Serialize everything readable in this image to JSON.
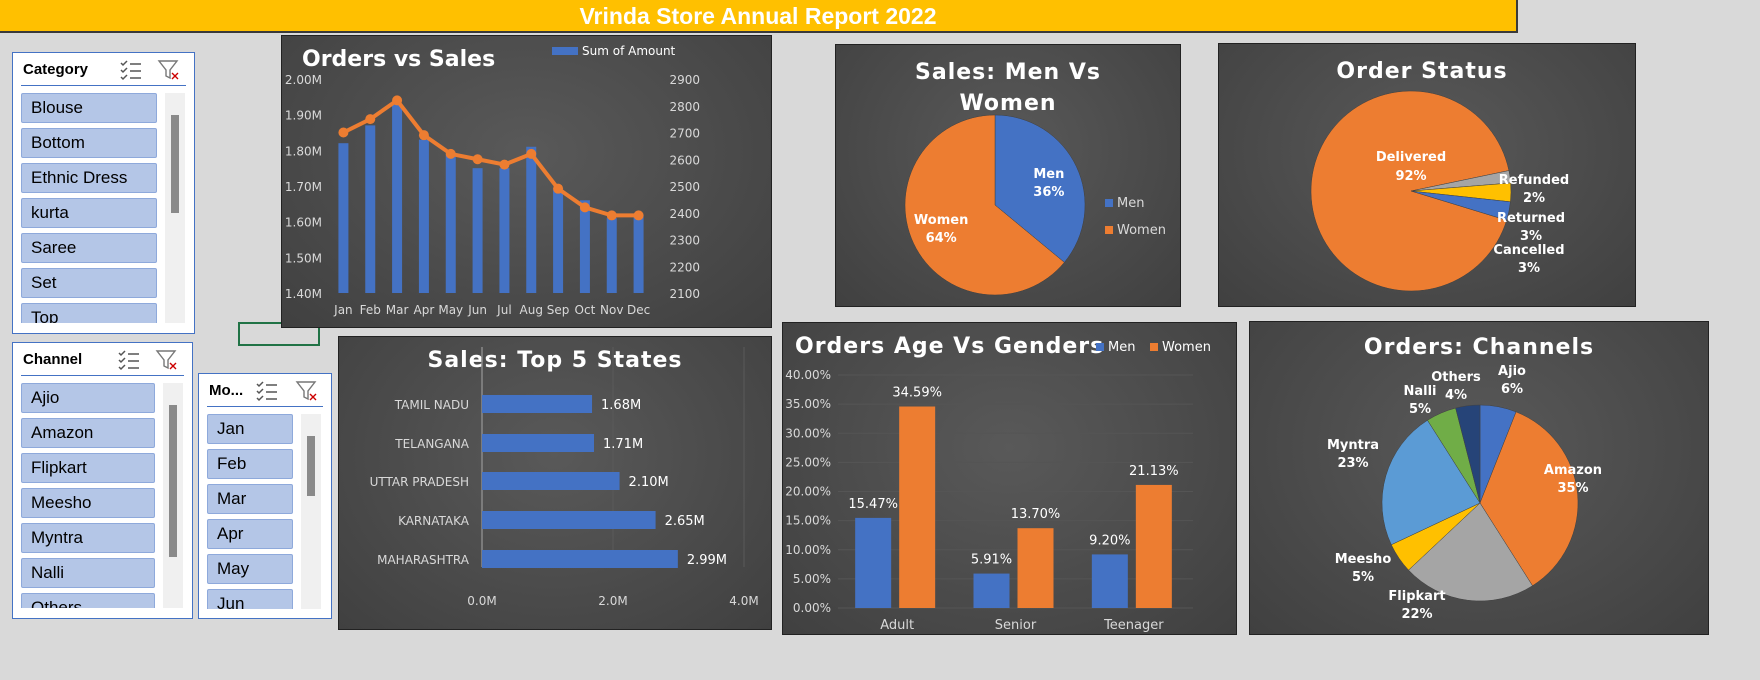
{
  "report_title": "Vrinda Store Annual Report 2022",
  "slicers": {
    "category": {
      "title": "Category",
      "items": [
        "Blouse",
        "Bottom",
        "Ethnic Dress",
        "kurta",
        "Saree",
        "Set",
        "Top"
      ]
    },
    "channel": {
      "title": "Channel",
      "items": [
        "Ajio",
        "Amazon",
        "Flipkart",
        "Meesho",
        "Myntra",
        "Nalli",
        "Others"
      ]
    },
    "month": {
      "title": "Mo...",
      "items": [
        "Jan",
        "Feb",
        "Mar",
        "Apr",
        "May",
        "Jun"
      ]
    }
  },
  "colors": {
    "blue": "#4472c4",
    "orange": "#ed7d31",
    "gray": "#a5a5a5",
    "yellow": "#ffc000",
    "lightblue": "#5b9bd5",
    "green": "#70ad47",
    "navy": "#264478"
  },
  "chart_data": [
    {
      "id": "orders_vs_sales",
      "type": "bar",
      "title": "Orders vs Sales",
      "legend": "Sum of Amount",
      "legend_position": "top",
      "categories": [
        "Jan",
        "Feb",
        "Mar",
        "Apr",
        "May",
        "Jun",
        "Jul",
        "Aug",
        "Sep",
        "Oct",
        "Nov",
        "Dec"
      ],
      "series": [
        {
          "name": "Sum of Amount",
          "type": "bar",
          "axis": "left",
          "values": [
            1.82,
            1.87,
            1.93,
            1.83,
            1.79,
            1.75,
            1.75,
            1.81,
            1.69,
            1.66,
            1.61,
            1.62
          ]
        },
        {
          "type": "line",
          "axis": "right",
          "values": [
            2700,
            2750,
            2820,
            2690,
            2620,
            2600,
            2580,
            2620,
            2490,
            2420,
            2390,
            2390
          ]
        }
      ],
      "left_ticks": [
        "2.00M",
        "1.90M",
        "1.80M",
        "1.70M",
        "1.60M",
        "1.50M",
        "1.40M"
      ],
      "right_ticks": [
        "2900",
        "2800",
        "2700",
        "2600",
        "2500",
        "2400",
        "2300",
        "2200",
        "2100"
      ],
      "ylim_left": [
        1.4,
        2.0
      ],
      "ylim_right": [
        2100,
        2900
      ]
    },
    {
      "id": "sales_men_women",
      "type": "pie",
      "title_lines": [
        "Sales: Men Vs",
        "Women"
      ],
      "labels": [
        "Men",
        "Women"
      ],
      "values": [
        36,
        64
      ],
      "data_labels": [
        "36%",
        "64%"
      ],
      "legend_position": "right"
    },
    {
      "id": "order_status",
      "type": "pie",
      "title": "Order Status",
      "labels": [
        "Delivered",
        "Refunded",
        "Returned",
        "Cancelled"
      ],
      "values": [
        92,
        2,
        3,
        3
      ],
      "data_labels": [
        "92%",
        "2%",
        "3%",
        "3%"
      ]
    },
    {
      "id": "top5_states",
      "type": "bar",
      "orientation": "horizontal",
      "title": "Sales: Top 5 States",
      "categories": [
        "TAMIL NADU",
        "TELANGANA",
        "UTTAR PRADESH",
        "KARNATAKA",
        "MAHARASHTRA"
      ],
      "values": [
        1.68,
        1.71,
        2.1,
        2.65,
        2.99
      ],
      "data_labels": [
        "1.68M",
        "1.71M",
        "2.10M",
        "2.65M",
        "2.99M"
      ],
      "x_ticks": [
        "0.0M",
        "2.0M",
        "4.0M"
      ],
      "xlim": [
        0,
        4
      ]
    },
    {
      "id": "age_vs_gender",
      "type": "bar",
      "title": "Orders Age Vs Genders",
      "legend_position": "top",
      "categories": [
        "Adult",
        "Senior",
        "Teenager"
      ],
      "series": [
        {
          "name": "Men",
          "values": [
            15.47,
            5.91,
            9.2
          ],
          "data_labels": [
            "15.47%",
            "5.91%",
            "9.20%"
          ]
        },
        {
          "name": "Women",
          "values": [
            34.59,
            13.7,
            21.13
          ],
          "data_labels": [
            "34.59%",
            "13.70%",
            "21.13%"
          ]
        }
      ],
      "y_ticks": [
        "40.00%",
        "35.00%",
        "30.00%",
        "25.00%",
        "20.00%",
        "15.00%",
        "10.00%",
        "5.00%",
        "0.00%"
      ],
      "ylim": [
        0,
        40
      ]
    },
    {
      "id": "channels",
      "type": "pie",
      "title": "Orders: Channels",
      "labels": [
        "Ajio",
        "Amazon",
        "Flipkart",
        "Meesho",
        "Myntra",
        "Nalli",
        "Others"
      ],
      "values": [
        6,
        35,
        22,
        5,
        23,
        5,
        4
      ],
      "data_labels": [
        "6%",
        "35%",
        "22%",
        "5%",
        "23%",
        "5%",
        "4%"
      ]
    }
  ]
}
